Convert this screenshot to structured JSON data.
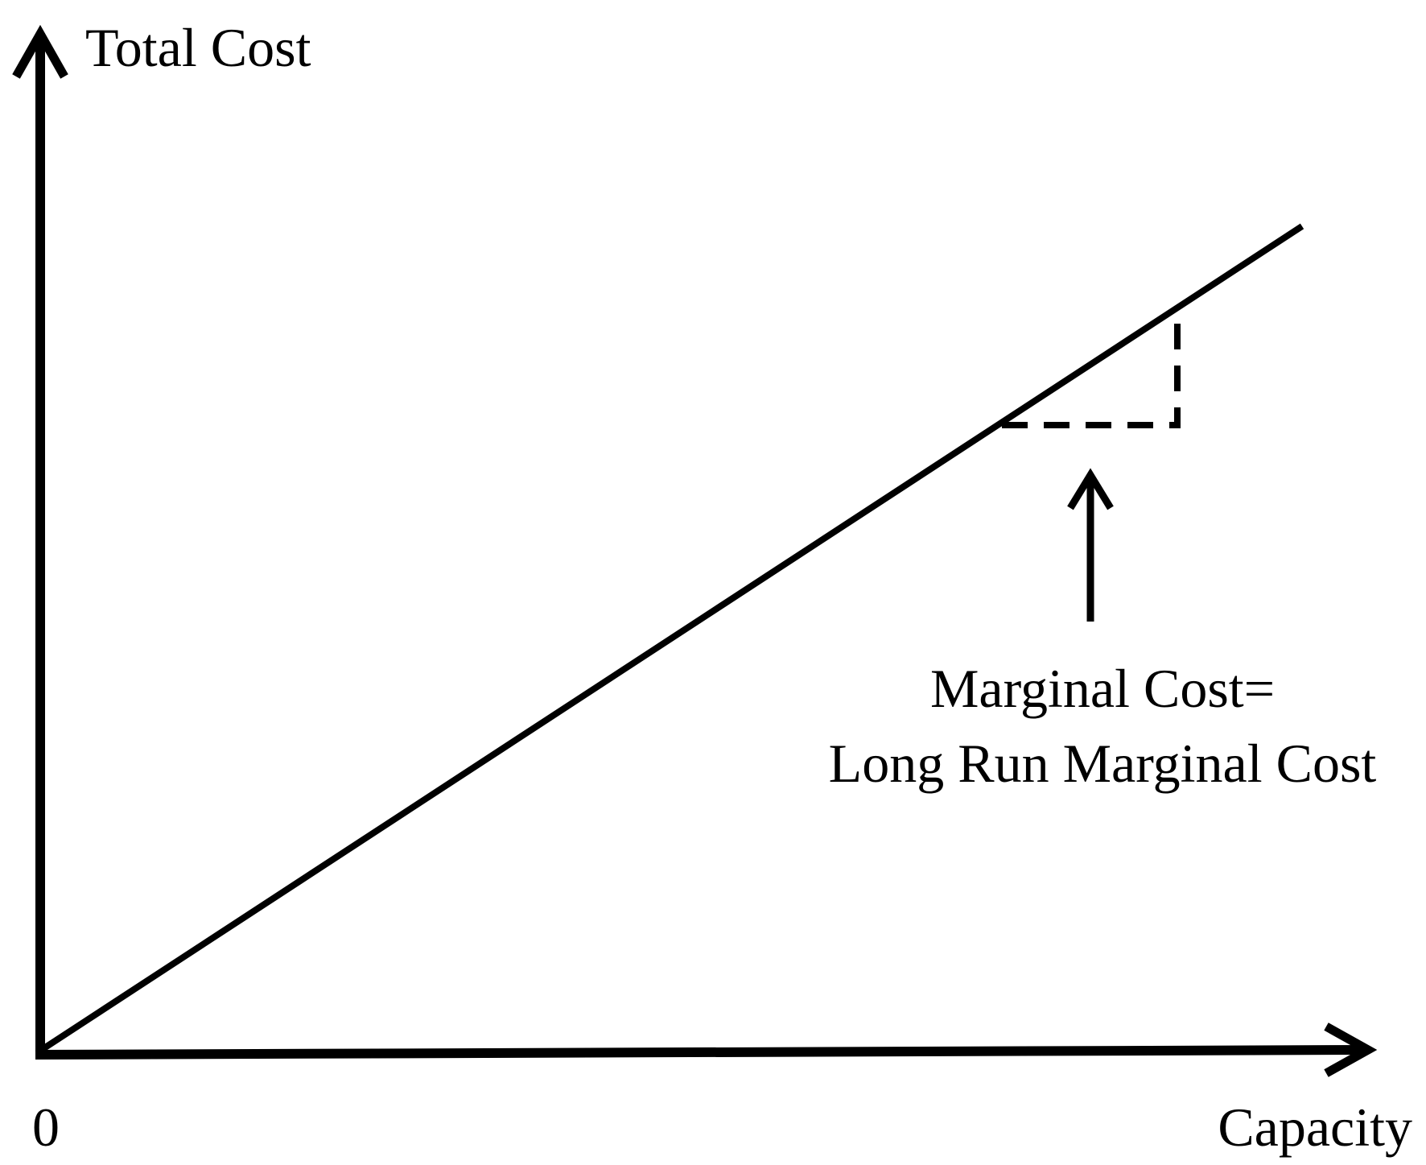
{
  "diagram": {
    "y_axis_label": "Total Cost",
    "x_axis_label": "Capacity",
    "origin_label": "0",
    "annotation_line1": "Marginal Cost=",
    "annotation_line2": "Long Run Marginal Cost",
    "stroke_color": "#000000",
    "background_color": "#ffffff"
  }
}
